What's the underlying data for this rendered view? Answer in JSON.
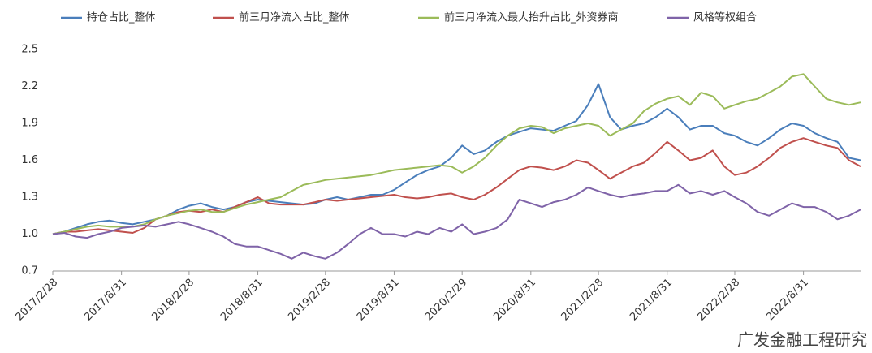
{
  "chart_data": {
    "type": "line",
    "x": [
      "2017/2/28",
      "2017/3/31",
      "2017/4/30",
      "2017/5/31",
      "2017/6/30",
      "2017/7/31",
      "2017/8/31",
      "2017/9/30",
      "2017/10/31",
      "2017/11/30",
      "2017/12/31",
      "2018/1/31",
      "2018/2/28",
      "2018/3/31",
      "2018/4/30",
      "2018/5/31",
      "2018/6/30",
      "2018/7/31",
      "2018/8/31",
      "2018/9/30",
      "2018/10/31",
      "2018/11/30",
      "2018/12/31",
      "2019/1/31",
      "2019/2/28",
      "2019/3/31",
      "2019/4/30",
      "2019/5/31",
      "2019/6/30",
      "2019/7/31",
      "2019/8/31",
      "2019/9/30",
      "2019/10/31",
      "2019/11/30",
      "2019/12/31",
      "2020/1/31",
      "2020/2/29",
      "2020/3/31",
      "2020/4/30",
      "2020/5/31",
      "2020/6/30",
      "2020/7/31",
      "2020/8/31",
      "2020/9/30",
      "2020/10/31",
      "2020/11/30",
      "2020/12/31",
      "2021/1/31",
      "2021/2/28",
      "2021/3/31",
      "2021/4/30",
      "2021/5/31",
      "2021/6/30",
      "2021/7/31",
      "2021/8/31",
      "2021/9/30",
      "2021/10/31",
      "2021/11/30",
      "2021/12/31",
      "2022/1/31",
      "2022/2/28",
      "2022/3/31",
      "2022/4/30",
      "2022/5/31",
      "2022/6/30",
      "2022/7/31",
      "2022/8/31",
      "2022/9/30",
      "2022/10/31",
      "2022/11/30",
      "2022/12/31",
      "2023/1/31"
    ],
    "series": [
      {
        "name": "持仓占比_整体",
        "color": "#4a7ebb",
        "values": [
          1.0,
          1.02,
          1.05,
          1.08,
          1.1,
          1.11,
          1.09,
          1.08,
          1.1,
          1.12,
          1.15,
          1.2,
          1.23,
          1.25,
          1.22,
          1.2,
          1.22,
          1.26,
          1.28,
          1.27,
          1.26,
          1.25,
          1.24,
          1.25,
          1.28,
          1.3,
          1.28,
          1.3,
          1.32,
          1.32,
          1.36,
          1.42,
          1.48,
          1.52,
          1.55,
          1.62,
          1.72,
          1.65,
          1.68,
          1.75,
          1.8,
          1.83,
          1.86,
          1.85,
          1.84,
          1.88,
          1.92,
          2.05,
          2.22,
          1.95,
          1.85,
          1.88,
          1.9,
          1.95,
          2.02,
          1.95,
          1.85,
          1.88,
          1.88,
          1.82,
          1.8,
          1.75,
          1.72,
          1.78,
          1.85,
          1.9,
          1.88,
          1.82,
          1.78,
          1.75,
          1.62,
          1.6
        ]
      },
      {
        "name": "前三月净流入占比_整体",
        "color": "#c0504d",
        "values": [
          1.0,
          1.02,
          1.02,
          1.03,
          1.04,
          1.03,
          1.02,
          1.01,
          1.05,
          1.12,
          1.15,
          1.18,
          1.19,
          1.18,
          1.2,
          1.18,
          1.22,
          1.26,
          1.3,
          1.25,
          1.24,
          1.24,
          1.24,
          1.26,
          1.28,
          1.27,
          1.28,
          1.29,
          1.3,
          1.31,
          1.32,
          1.3,
          1.29,
          1.3,
          1.32,
          1.33,
          1.3,
          1.28,
          1.32,
          1.38,
          1.45,
          1.52,
          1.55,
          1.54,
          1.52,
          1.55,
          1.6,
          1.58,
          1.52,
          1.45,
          1.5,
          1.55,
          1.58,
          1.66,
          1.75,
          1.68,
          1.6,
          1.62,
          1.68,
          1.55,
          1.48,
          1.5,
          1.55,
          1.62,
          1.7,
          1.75,
          1.78,
          1.75,
          1.72,
          1.7,
          1.6,
          1.55
        ]
      },
      {
        "name": "前三月净流入最大抬升占比_外资券商",
        "color": "#9bbb59",
        "values": [
          1.0,
          1.02,
          1.04,
          1.06,
          1.07,
          1.06,
          1.06,
          1.06,
          1.08,
          1.12,
          1.15,
          1.17,
          1.19,
          1.2,
          1.18,
          1.18,
          1.21,
          1.24,
          1.26,
          1.28,
          1.3,
          1.35,
          1.4,
          1.42,
          1.44,
          1.45,
          1.46,
          1.47,
          1.48,
          1.5,
          1.52,
          1.53,
          1.54,
          1.55,
          1.56,
          1.55,
          1.5,
          1.55,
          1.62,
          1.72,
          1.8,
          1.86,
          1.88,
          1.87,
          1.82,
          1.86,
          1.88,
          1.9,
          1.88,
          1.8,
          1.85,
          1.9,
          2.0,
          2.06,
          2.1,
          2.12,
          2.05,
          2.15,
          2.12,
          2.02,
          2.05,
          2.08,
          2.1,
          2.15,
          2.2,
          2.28,
          2.3,
          2.2,
          2.1,
          2.07,
          2.05,
          2.07
        ]
      },
      {
        "name": "风格等权组合",
        "color": "#7f63a8",
        "values": [
          1.0,
          1.01,
          0.98,
          0.97,
          1.0,
          1.02,
          1.05,
          1.06,
          1.07,
          1.06,
          1.08,
          1.1,
          1.08,
          1.05,
          1.02,
          0.98,
          0.92,
          0.9,
          0.9,
          0.87,
          0.84,
          0.8,
          0.85,
          0.82,
          0.8,
          0.85,
          0.92,
          1.0,
          1.05,
          1.0,
          1.0,
          0.98,
          1.02,
          1.0,
          1.05,
          1.02,
          1.08,
          1.0,
          1.02,
          1.05,
          1.12,
          1.28,
          1.25,
          1.22,
          1.26,
          1.28,
          1.32,
          1.38,
          1.35,
          1.32,
          1.3,
          1.32,
          1.33,
          1.35,
          1.35,
          1.4,
          1.33,
          1.35,
          1.32,
          1.35,
          1.3,
          1.25,
          1.18,
          1.15,
          1.2,
          1.25,
          1.22,
          1.22,
          1.18,
          1.12,
          1.15,
          1.2
        ]
      }
    ],
    "xticks": [
      "2017/2/28",
      "2017/8/31",
      "2018/2/28",
      "2018/8/31",
      "2019/2/28",
      "2019/8/31",
      "2020/2/29",
      "2020/8/31",
      "2021/2/28",
      "2021/8/31",
      "2022/2/28",
      "2022/8/31"
    ],
    "ylim": [
      0.7,
      2.5
    ],
    "yticks": [
      0.7,
      {
        "value": 1,
        "label": "1.0"
      },
      1.3,
      1.6,
      1.9,
      2.2,
      2.5
    ],
    "grid": false
  },
  "watermark": "广发金融工程研究"
}
